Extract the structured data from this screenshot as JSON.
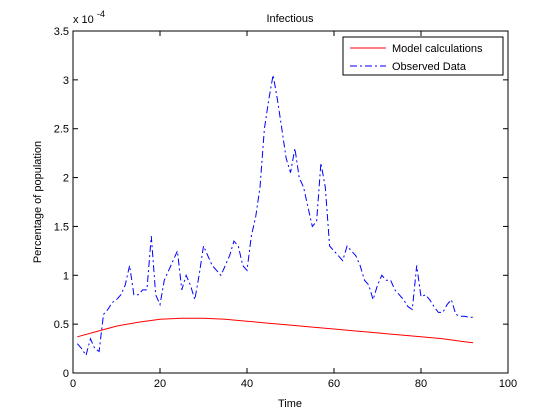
{
  "chart_data": {
    "type": "line",
    "title": "Infectious",
    "xlabel": "Time",
    "ylabel": "Percentage of population",
    "y_exponent_label": "x 10",
    "y_exponent": "-4",
    "xlim": [
      0,
      100
    ],
    "ylim": [
      0,
      3.5
    ],
    "x_ticks": [
      "0",
      "20",
      "40",
      "60",
      "80",
      "100"
    ],
    "y_ticks": [
      "0",
      "0.5",
      "1",
      "1.5",
      "2",
      "2.5",
      "3",
      "3.5"
    ],
    "grid": false,
    "legend_position": "top-right",
    "series": [
      {
        "name": "Model calculations",
        "color": "#ff0000",
        "style": "solid",
        "x": [
          1,
          5,
          10,
          15,
          20,
          25,
          30,
          35,
          40,
          45,
          50,
          55,
          60,
          65,
          70,
          75,
          80,
          85,
          90,
          92
        ],
        "y": [
          0.37,
          0.42,
          0.48,
          0.52,
          0.55,
          0.56,
          0.56,
          0.55,
          0.53,
          0.51,
          0.49,
          0.47,
          0.45,
          0.43,
          0.41,
          0.39,
          0.37,
          0.35,
          0.32,
          0.31
        ]
      },
      {
        "name": "Observed Data",
        "color": "#0000ff",
        "style": "dashdot",
        "x": [
          1,
          2,
          3,
          4,
          5,
          6,
          7,
          8,
          9,
          10,
          11,
          12,
          13,
          14,
          15,
          16,
          17,
          18,
          19,
          20,
          21,
          22,
          23,
          24,
          25,
          26,
          27,
          28,
          29,
          30,
          31,
          32,
          33,
          34,
          35,
          36,
          37,
          38,
          39,
          40,
          41,
          42,
          43,
          44,
          45,
          46,
          47,
          48,
          49,
          50,
          51,
          52,
          53,
          54,
          55,
          56,
          57,
          58,
          59,
          60,
          61,
          62,
          63,
          64,
          65,
          66,
          67,
          68,
          69,
          70,
          71,
          72,
          73,
          74,
          75,
          76,
          77,
          78,
          79,
          80,
          81,
          82,
          83,
          84,
          85,
          86,
          87,
          88,
          89,
          90,
          91,
          92
        ],
        "y": [
          0.3,
          0.25,
          0.18,
          0.35,
          0.25,
          0.22,
          0.6,
          0.65,
          0.72,
          0.75,
          0.8,
          0.9,
          1.1,
          0.8,
          0.8,
          0.85,
          0.85,
          1.4,
          0.8,
          0.7,
          0.95,
          1.05,
          1.15,
          1.25,
          0.85,
          1.0,
          0.9,
          0.75,
          1.0,
          1.3,
          1.2,
          1.1,
          1.05,
          1.0,
          1.1,
          1.2,
          1.35,
          1.3,
          1.1,
          1.05,
          1.4,
          1.6,
          1.9,
          2.5,
          2.8,
          3.05,
          2.8,
          2.5,
          2.2,
          2.05,
          2.3,
          2.0,
          1.9,
          1.7,
          1.5,
          1.55,
          2.15,
          1.9,
          1.3,
          1.25,
          1.2,
          1.15,
          1.3,
          1.25,
          1.2,
          1.1,
          0.95,
          0.9,
          0.75,
          0.9,
          1.0,
          0.95,
          0.95,
          0.85,
          0.8,
          0.75,
          0.68,
          0.65,
          1.1,
          0.78,
          0.8,
          0.75,
          0.68,
          0.62,
          0.62,
          0.7,
          0.75,
          0.6,
          0.58,
          0.58,
          0.57,
          0.57
        ]
      }
    ]
  }
}
